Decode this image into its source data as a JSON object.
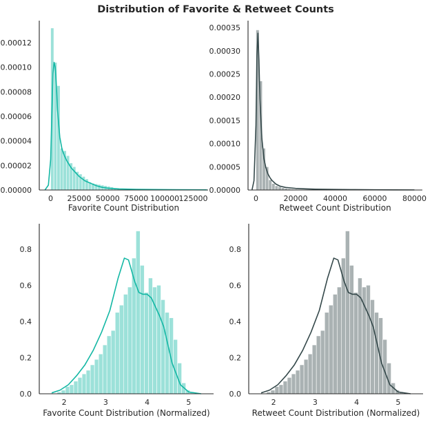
{
  "title": "Distribution of Favorite & Retweet Counts",
  "colors": {
    "favorite": "#13b7a4",
    "retweet": "#34484a"
  },
  "chart_data": [
    {
      "type": "bar",
      "kind": "histogram+kde",
      "color": "#13b7a4",
      "xlabel": "Favorite Count Distribution",
      "ylabel": "",
      "xlim": [
        -10000,
        138000
      ],
      "ylim": [
        0,
        0.000138
      ],
      "xticks": [
        0,
        25000,
        50000,
        75000,
        100000,
        125000
      ],
      "xtick_labels": [
        "0",
        "25000",
        "50000",
        "75000",
        "100000",
        "125000"
      ],
      "yticks": [
        0,
        2e-05,
        4e-05,
        6e-05,
        8e-05,
        0.0001,
        0.00012
      ],
      "ytick_labels": [
        "0.00000",
        "0.00002",
        "0.00004",
        "0.00006",
        "0.00008",
        "0.00010",
        "0.00012"
      ],
      "bin_start": 0,
      "bin_width": 2750,
      "values": [
        0.000132,
        0.000104,
        8.5e-05,
        3.4e-05,
        3.2e-05,
        2.8e-05,
        2.2e-05,
        1.9e-05,
        1.5e-05,
        1.3e-05,
        1.1e-05,
        9e-06,
        6.5e-06,
        5.5e-06,
        5e-06,
        4.5e-06,
        4e-06,
        3.5e-06,
        3e-06,
        2.5e-06,
        1.5e-06,
        1.2e-06,
        1e-06,
        8e-07,
        6e-07,
        6e-07,
        5e-07,
        4e-07,
        4e-07,
        4e-07,
        3e-07,
        3e-07,
        3e-07,
        2e-07,
        2e-07,
        2e-07,
        2e-07,
        2e-07,
        2e-07,
        1e-07,
        1e-07,
        1e-07,
        1e-07,
        1e-07,
        1e-07,
        1e-07,
        1e-07,
        1e-07,
        1e-07,
        1e-07
      ],
      "kde": {
        "x": [
          -5000,
          -2000,
          0,
          1000,
          2000,
          3000,
          4000,
          5000,
          6000,
          8000,
          10000,
          12000,
          14000,
          16000,
          18000,
          20000,
          22000,
          25000,
          30000,
          35000,
          40000,
          45000,
          50000,
          60000,
          75000,
          100000,
          125000,
          137000
        ],
        "y": [
          0,
          4e-06,
          2.5e-05,
          6e-05,
          9.5e-05,
          0.000104,
          0.0001,
          8.5e-05,
          6.5e-05,
          4.3e-05,
          3.3e-05,
          2.8e-05,
          2.4e-05,
          2.1e-05,
          1.8e-05,
          1.6e-05,
          1.4e-05,
          1.1e-05,
          7.5e-06,
          5.5e-06,
          3.5e-06,
          2.2e-06,
          1.5e-06,
          9e-07,
          5e-07,
          3e-07,
          2e-07,
          1e-07
        ]
      }
    },
    {
      "type": "bar",
      "kind": "histogram+kde",
      "color": "#34484a",
      "xlabel": "Retweet Count Distribution",
      "ylabel": "",
      "xlim": [
        -4000,
        84000
      ],
      "ylim": [
        0,
        0.000365
      ],
      "xticks": [
        0,
        20000,
        40000,
        60000,
        80000
      ],
      "xtick_labels": [
        "0",
        "20000",
        "40000",
        "60000",
        "80000"
      ],
      "yticks": [
        0,
        5e-05,
        0.0001,
        0.00015,
        0.0002,
        0.00025,
        0.0003,
        0.00035
      ],
      "ytick_labels": [
        "0.00000",
        "0.00005",
        "0.00010",
        "0.00015",
        "0.00020",
        "0.00025",
        "0.00030",
        "0.00035"
      ],
      "bin_start": 0,
      "bin_width": 1600,
      "values": [
        0.000345,
        0.000235,
        9e-05,
        5e-05,
        2.2e-05,
        1.4e-05,
        9e-06,
        7e-06,
        5e-06,
        3.5e-06,
        2.5e-06,
        2e-06,
        1.5e-06,
        1.2e-06,
        1e-06,
        1e-06,
        8e-07,
        7e-07,
        6e-07,
        5e-07,
        5e-07,
        4e-07,
        4e-07,
        3e-07,
        3e-07,
        3e-07,
        2e-07,
        2e-07,
        2e-07,
        2e-07,
        2e-07,
        2e-07,
        1e-07,
        1e-07,
        1e-07,
        1e-07,
        1e-07,
        1e-07,
        1e-07,
        1e-07,
        1e-07,
        1e-07,
        1e-07,
        1e-07,
        1e-07,
        1e-07,
        1e-07,
        1e-07,
        1e-07,
        1e-07
      ],
      "kde": {
        "x": [
          -2000,
          -1000,
          0,
          500,
          1000,
          1500,
          2000,
          3000,
          4000,
          5000,
          6000,
          7000,
          8000,
          10000,
          12000,
          15000,
          20000,
          25000,
          30000,
          40000,
          50000,
          60000,
          70000,
          80000
        ],
        "y": [
          0,
          2e-05,
          0.00014,
          0.00029,
          0.000338,
          0.00028,
          0.000195,
          0.00011,
          6.8e-05,
          4.8e-05,
          3.5e-05,
          2.7e-05,
          2.1e-05,
          1.3e-05,
          8.5e-06,
          5.5e-06,
          3.5e-06,
          2.5e-06,
          1.8e-06,
          1.2e-06,
          8e-07,
          5e-07,
          3e-07,
          2e-07
        ]
      }
    },
    {
      "type": "bar",
      "kind": "histogram+kde",
      "color": "#13b7a4",
      "xlabel": "Favorite Count Distribution (Normalized)",
      "ylabel": "",
      "xlim": [
        1.4,
        5.6
      ],
      "ylim": [
        0,
        0.94
      ],
      "xticks": [
        2,
        3,
        4,
        5
      ],
      "xtick_labels": [
        "2",
        "3",
        "4",
        "5"
      ],
      "yticks": [
        0,
        0.2,
        0.4,
        0.6,
        0.8
      ],
      "ytick_labels": [
        "0.0",
        "0.2",
        "0.4",
        "0.6",
        "0.8"
      ],
      "bin_start": 1.83,
      "bin_width": 0.1,
      "values": [
        0.01,
        0.02,
        0.04,
        0.05,
        0.07,
        0.09,
        0.11,
        0.13,
        0.16,
        0.19,
        0.22,
        0.27,
        0.32,
        0.35,
        0.45,
        0.49,
        0.55,
        0.59,
        0.75,
        0.9,
        0.71,
        0.56,
        0.64,
        0.59,
        0.6,
        0.52,
        0.45,
        0.42,
        0.3,
        0.17,
        0.06,
        0.02,
        0.01
      ],
      "kde": {
        "x": [
          1.7,
          1.9,
          2.1,
          2.3,
          2.5,
          2.7,
          2.9,
          3.1,
          3.3,
          3.45,
          3.55,
          3.7,
          3.8,
          3.9,
          4.0,
          4.1,
          4.2,
          4.3,
          4.4,
          4.5,
          4.6,
          4.8,
          5.0,
          5.3
        ],
        "y": [
          0.005,
          0.02,
          0.05,
          0.1,
          0.16,
          0.24,
          0.34,
          0.46,
          0.64,
          0.75,
          0.74,
          0.62,
          0.56,
          0.55,
          0.55,
          0.53,
          0.48,
          0.43,
          0.37,
          0.27,
          0.17,
          0.05,
          0.01,
          0.0
        ]
      }
    },
    {
      "type": "bar",
      "kind": "histogram+kde",
      "color": "#34484a",
      "xlabel": "Retweet Count Distribution (Normalized)",
      "ylabel": "",
      "xlim": [
        1.4,
        5.6
      ],
      "ylim": [
        0,
        0.94
      ],
      "xticks": [
        2,
        3,
        4,
        5
      ],
      "xtick_labels": [
        "2",
        "3",
        "4",
        "5"
      ],
      "yticks": [
        0,
        0.2,
        0.4,
        0.6,
        0.8
      ],
      "ytick_labels": [
        "0.0",
        "0.2",
        "0.4",
        "0.6",
        "0.8"
      ],
      "bin_start": 1.83,
      "bin_width": 0.1,
      "values": [
        0.01,
        0.02,
        0.04,
        0.05,
        0.07,
        0.09,
        0.11,
        0.13,
        0.16,
        0.19,
        0.22,
        0.27,
        0.32,
        0.35,
        0.45,
        0.49,
        0.55,
        0.59,
        0.75,
        0.9,
        0.71,
        0.56,
        0.64,
        0.59,
        0.6,
        0.52,
        0.45,
        0.42,
        0.3,
        0.17,
        0.06,
        0.02,
        0.01
      ],
      "kde": {
        "x": [
          1.7,
          1.9,
          2.1,
          2.3,
          2.5,
          2.7,
          2.9,
          3.1,
          3.3,
          3.45,
          3.55,
          3.7,
          3.8,
          3.9,
          4.0,
          4.1,
          4.2,
          4.3,
          4.4,
          4.5,
          4.6,
          4.8,
          5.0,
          5.3
        ],
        "y": [
          0.005,
          0.02,
          0.05,
          0.1,
          0.16,
          0.24,
          0.34,
          0.46,
          0.64,
          0.75,
          0.74,
          0.62,
          0.56,
          0.55,
          0.55,
          0.53,
          0.48,
          0.43,
          0.37,
          0.27,
          0.17,
          0.05,
          0.01,
          0.0
        ]
      }
    }
  ]
}
